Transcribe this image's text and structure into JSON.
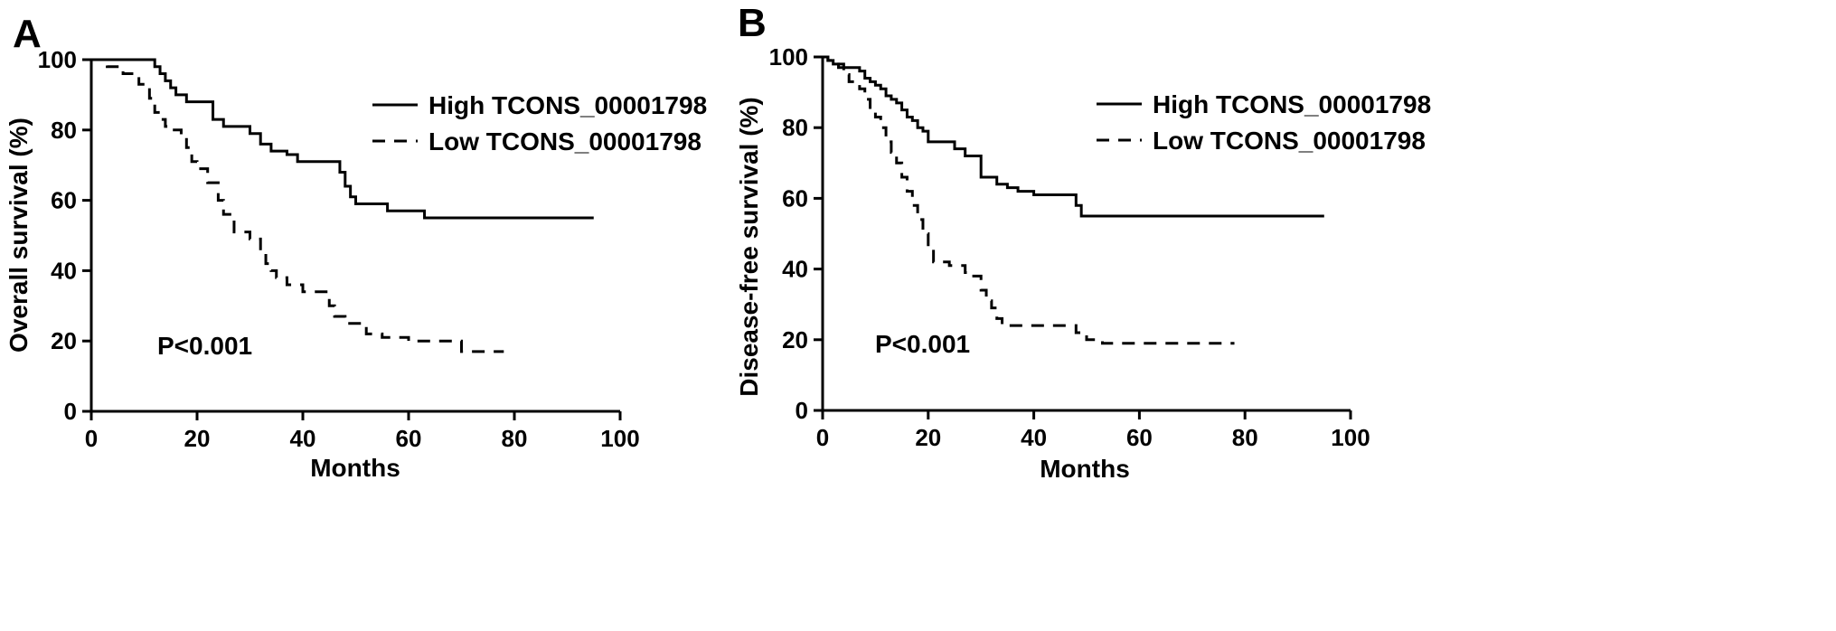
{
  "chart_data": [
    {
      "type": "line",
      "subtype": "kaplan-meier step",
      "panel_label": "A",
      "xlabel": "Months",
      "ylabel": "Overall survival (%)",
      "xlim": [
        0,
        100
      ],
      "ylim": [
        0,
        100
      ],
      "xticks": [
        0,
        20,
        40,
        60,
        80,
        100
      ],
      "yticks": [
        0,
        20,
        40,
        60,
        80,
        100
      ],
      "grid": false,
      "legend_position": "top-right",
      "annotation": "P<0.001",
      "series": [
        {
          "name": "High TCONS_00001798",
          "line_style": "solid",
          "x": [
            0,
            11,
            12,
            13,
            14,
            15,
            16,
            17,
            18,
            20,
            23,
            25,
            27,
            30,
            32,
            34,
            37,
            39,
            46,
            47,
            48,
            49,
            50,
            52,
            56,
            60,
            63,
            95
          ],
          "y": [
            100,
            100,
            98,
            96,
            94,
            92,
            90,
            90,
            88,
            88,
            83,
            81,
            81,
            79,
            76,
            74,
            73,
            71,
            71,
            68,
            64,
            61,
            59,
            59,
            57,
            57,
            55,
            55
          ]
        },
        {
          "name": "Low TCONS_00001798",
          "line_style": "dashed",
          "x": [
            0,
            3,
            6,
            9,
            11,
            12,
            13,
            14,
            15,
            17,
            18,
            19,
            20,
            22,
            24,
            25,
            27,
            30,
            32,
            33,
            34,
            35,
            37,
            40,
            44,
            45,
            46,
            48,
            52,
            55,
            60,
            64,
            69,
            70,
            78
          ],
          "y": [
            100,
            98,
            96,
            93,
            89,
            85,
            83,
            81,
            80,
            78,
            75,
            71,
            69,
            65,
            60,
            56,
            51,
            49,
            45,
            42,
            40,
            38,
            36,
            34,
            34,
            30,
            27,
            25,
            22,
            21,
            20,
            20,
            20,
            17,
            17
          ]
        }
      ]
    },
    {
      "type": "line",
      "subtype": "kaplan-meier step",
      "panel_label": "B",
      "xlabel": "Months",
      "ylabel": "Disease-free survival (%)",
      "xlim": [
        0,
        100
      ],
      "ylim": [
        0,
        100
      ],
      "xticks": [
        0,
        20,
        40,
        60,
        80,
        100
      ],
      "yticks": [
        0,
        20,
        40,
        60,
        80,
        100
      ],
      "grid": false,
      "legend_position": "top-right",
      "annotation": "P<0.001",
      "series": [
        {
          "name": "High TCONS_00001798",
          "line_style": "solid",
          "x": [
            0,
            1,
            2,
            4,
            7,
            8,
            9,
            10,
            11,
            12,
            13,
            14,
            15,
            16,
            17,
            18,
            19,
            20,
            22,
            25,
            27,
            29,
            30,
            33,
            35,
            37,
            40,
            45,
            48,
            49,
            95
          ],
          "y": [
            100,
            99,
            98,
            97,
            96,
            94,
            93,
            92,
            91,
            89,
            88,
            87,
            85,
            83,
            82,
            80,
            79,
            76,
            76,
            74,
            72,
            72,
            66,
            64,
            63,
            62,
            61,
            61,
            58,
            55,
            55
          ]
        },
        {
          "name": "Low TCONS_00001798",
          "line_style": "dashed",
          "x": [
            0,
            1,
            2,
            3,
            4,
            5,
            7,
            8,
            9,
            10,
            11,
            12,
            13,
            14,
            15,
            16,
            17,
            18,
            19,
            20,
            21,
            24,
            27,
            28,
            30,
            31,
            32,
            33,
            34,
            40,
            44,
            48,
            50,
            53,
            60,
            78
          ],
          "y": [
            100,
            99,
            98,
            97,
            95,
            93,
            91,
            88,
            85,
            83,
            80,
            76,
            73,
            70,
            66,
            62,
            58,
            54,
            50,
            46,
            42,
            41,
            39,
            38,
            34,
            31,
            29,
            26,
            24,
            24,
            24,
            22,
            20,
            19,
            19,
            19
          ]
        }
      ]
    }
  ]
}
